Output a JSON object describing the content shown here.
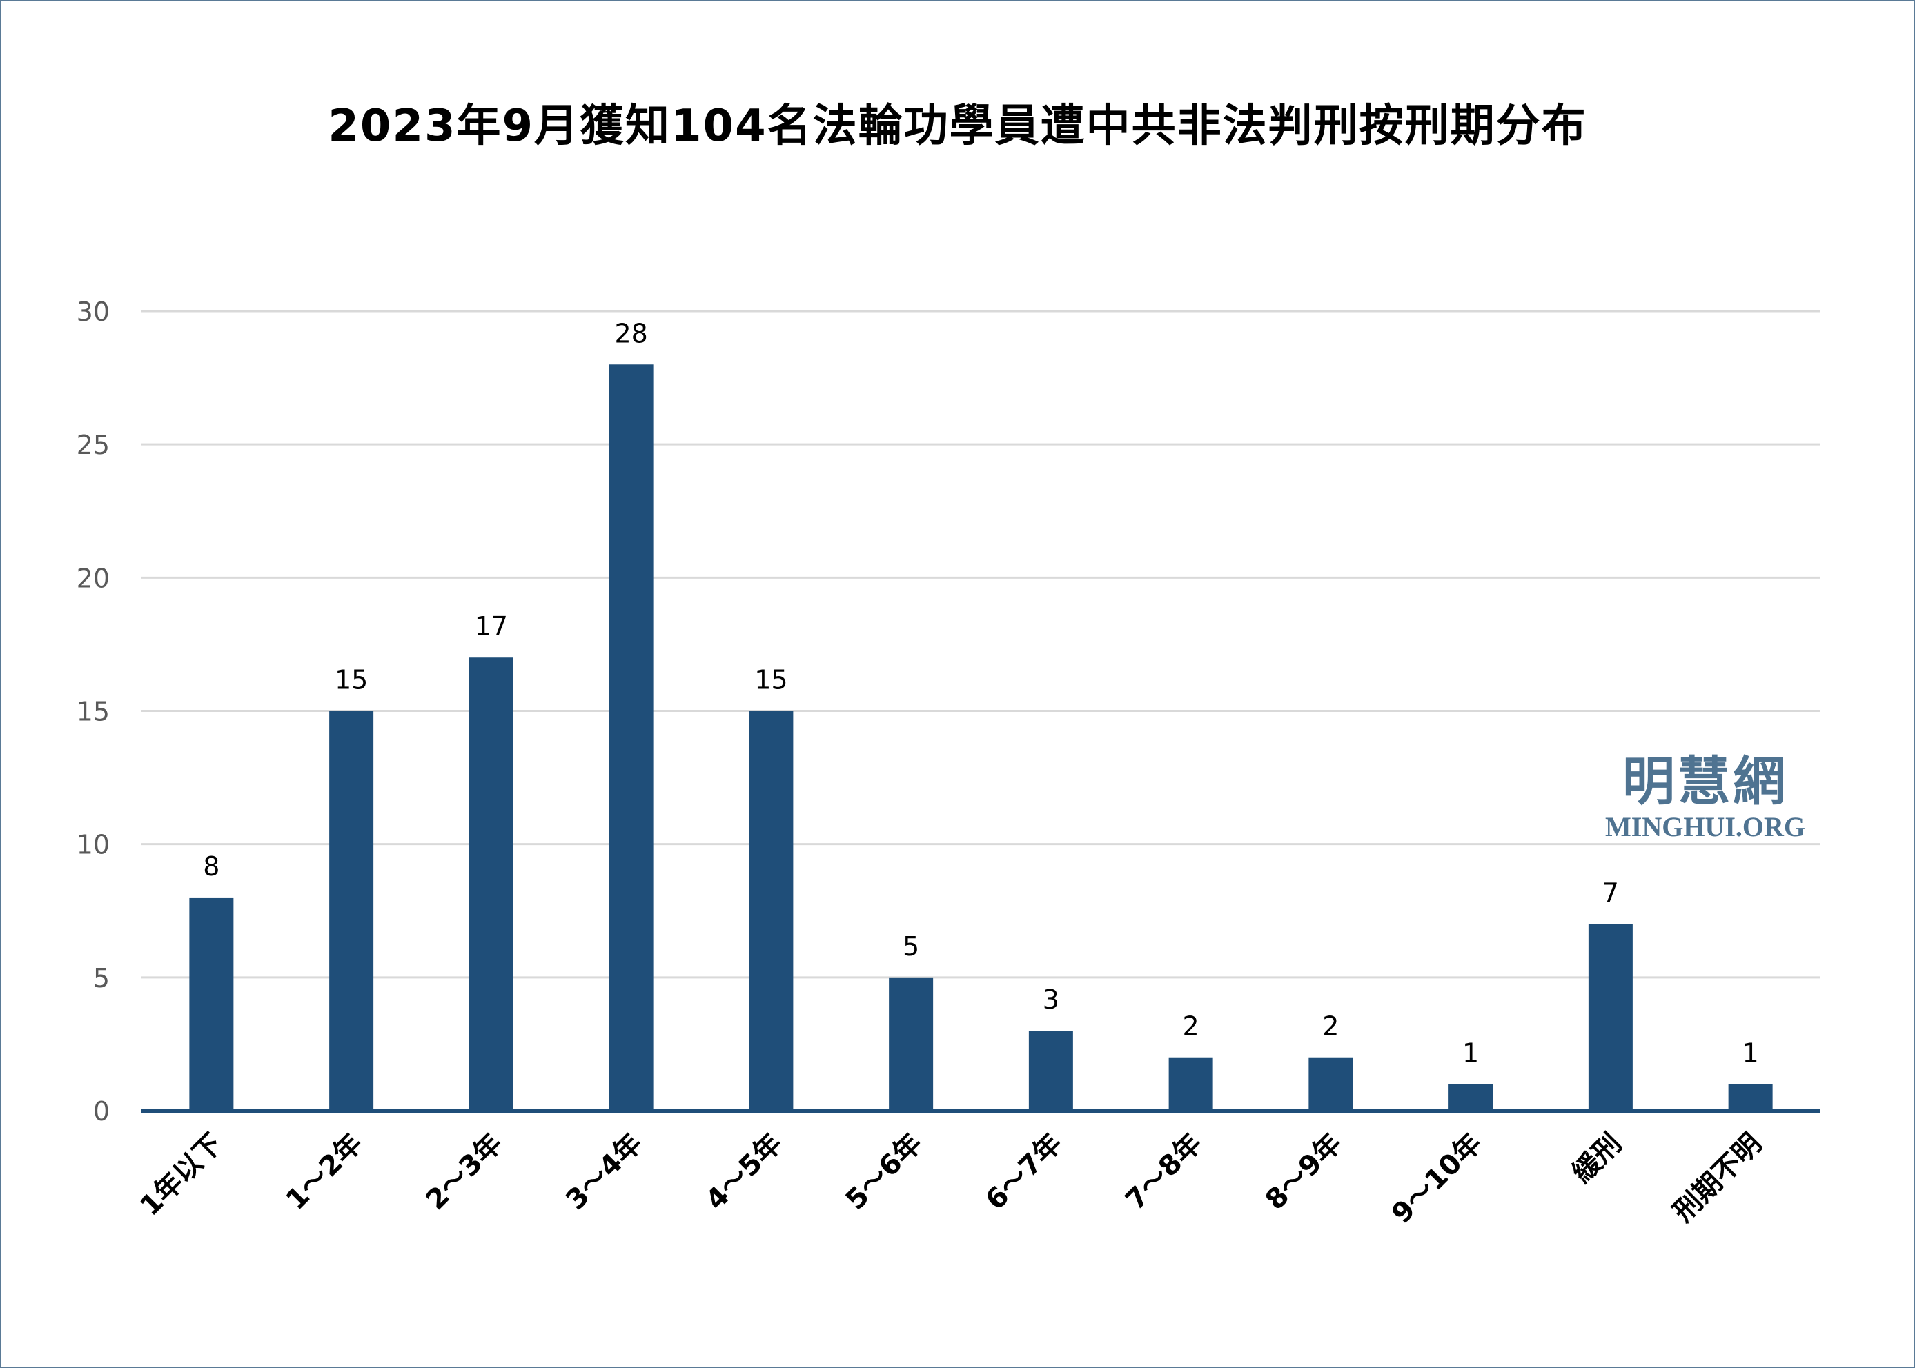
{
  "chart_data": {
    "type": "bar",
    "title": "2023年9月獲知104名法輪功學員遭中共非法判刑按刑期分布",
    "categories": [
      "1年以下",
      "1～2年",
      "2～3年",
      "3～4年",
      "4～5年",
      "5～6年",
      "6～7年",
      "7～8年",
      "8～9年",
      "9～10年",
      "緩刑",
      "刑期不明"
    ],
    "values": [
      8,
      15,
      17,
      28,
      15,
      5,
      3,
      2,
      2,
      1,
      7,
      1
    ],
    "xlabel": "",
    "ylabel": "",
    "ylim": [
      0,
      30
    ],
    "yticks": [
      0,
      5,
      10,
      15,
      20,
      25,
      30
    ],
    "grid": true,
    "bar_color": "#1f4e79"
  },
  "watermark": {
    "cn": "明慧網",
    "en": "MINGHUI.ORG"
  }
}
